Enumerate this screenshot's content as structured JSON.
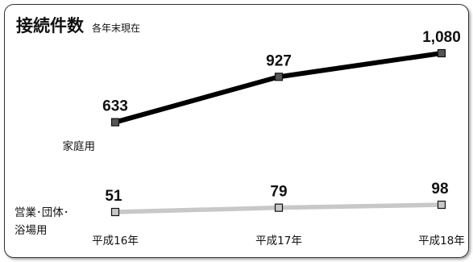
{
  "chart_data": {
    "type": "line",
    "title": "接続件数",
    "subtitle": "各年末現在",
    "categories": [
      "平成16年",
      "平成17年",
      "平成18年"
    ],
    "series": [
      {
        "name": "家庭用",
        "values": [
          633,
          927,
          1080
        ],
        "labels": [
          "633",
          "927",
          "1,080"
        ],
        "color": "#000000",
        "marker_color": "#555555"
      },
      {
        "name": "営業・団体・浴場用",
        "label_lines": [
          "営業･団体･",
          "浴場用"
        ],
        "values": [
          51,
          79,
          98
        ],
        "labels": [
          "51",
          "79",
          "98"
        ],
        "color": "#c8c8c8",
        "marker_color": "#c8c8c8"
      }
    ],
    "xlabel": "",
    "ylabel": "",
    "grid": false
  }
}
